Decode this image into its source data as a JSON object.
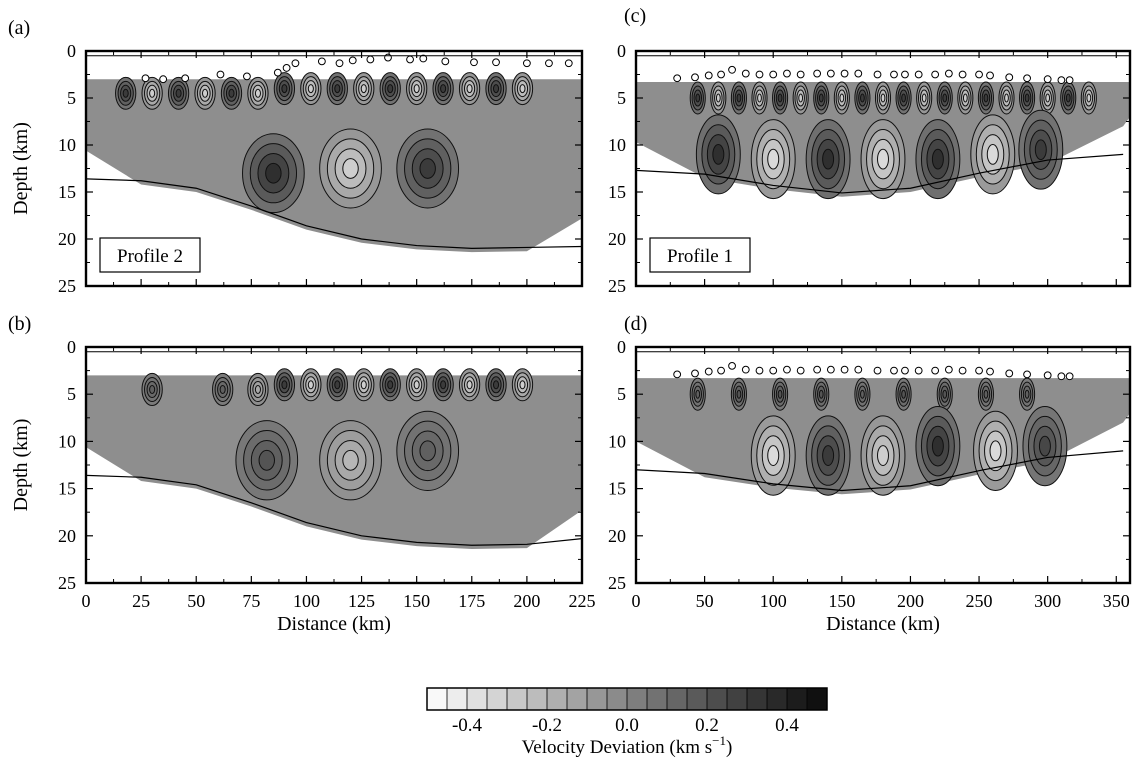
{
  "chart_data": [
    {
      "panel": "(a)",
      "type": "heatmap",
      "profile_label": "Profile 2",
      "xlim": [
        0,
        225
      ],
      "ylim": [
        0,
        25
      ],
      "y_inverted": true,
      "xticks": [
        0,
        25,
        50,
        75,
        100,
        125,
        150,
        175,
        200,
        225
      ],
      "yticks": [
        0,
        5,
        10,
        15,
        20,
        25
      ],
      "ylabel": "Depth (km)",
      "xlabel": "",
      "x_tick_labels_shown": false,
      "surface_depth_km": 3.0,
      "stations": [
        {
          "x": 27,
          "depth": 2.9
        },
        {
          "x": 35,
          "depth": 3.0
        },
        {
          "x": 45,
          "depth": 2.9
        },
        {
          "x": 61,
          "depth": 2.5
        },
        {
          "x": 73,
          "depth": 2.7
        },
        {
          "x": 87,
          "depth": 2.3
        },
        {
          "x": 91,
          "depth": 1.8
        },
        {
          "x": 95,
          "depth": 1.3
        },
        {
          "x": 107,
          "depth": 1.1
        },
        {
          "x": 115,
          "depth": 1.3
        },
        {
          "x": 121,
          "depth": 1.0
        },
        {
          "x": 129,
          "depth": 0.9
        },
        {
          "x": 137,
          "depth": 0.7
        },
        {
          "x": 147,
          "depth": 0.9
        },
        {
          "x": 153,
          "depth": 0.8
        },
        {
          "x": 163,
          "depth": 1.1
        },
        {
          "x": 176,
          "depth": 1.2
        },
        {
          "x": 186,
          "depth": 1.2
        },
        {
          "x": 200,
          "depth": 1.3
        },
        {
          "x": 210,
          "depth": 1.3
        },
        {
          "x": 219,
          "depth": 1.3
        }
      ],
      "moho": [
        [
          0,
          13.6
        ],
        [
          25,
          13.8
        ],
        [
          50,
          14.6
        ],
        [
          75,
          16.5
        ],
        [
          100,
          18.6
        ],
        [
          125,
          20.0
        ],
        [
          150,
          20.7
        ],
        [
          175,
          21.0
        ],
        [
          200,
          20.9
        ],
        [
          225,
          20.8
        ]
      ],
      "anomalies": [
        {
          "x": 18,
          "depth": 4.5,
          "value": 0.3
        },
        {
          "x": 30,
          "depth": 4.5,
          "value": -0.3
        },
        {
          "x": 42,
          "depth": 4.5,
          "value": 0.3
        },
        {
          "x": 54,
          "depth": 4.5,
          "value": -0.3
        },
        {
          "x": 66,
          "depth": 4.5,
          "value": 0.3
        },
        {
          "x": 78,
          "depth": 4.5,
          "value": -0.3
        },
        {
          "x": 90,
          "depth": 4.0,
          "value": 0.3
        },
        {
          "x": 102,
          "depth": 4.0,
          "value": -0.3
        },
        {
          "x": 114,
          "depth": 4.0,
          "value": 0.3
        },
        {
          "x": 126,
          "depth": 4.0,
          "value": -0.3
        },
        {
          "x": 138,
          "depth": 4.0,
          "value": 0.3
        },
        {
          "x": 150,
          "depth": 4.0,
          "value": -0.3
        },
        {
          "x": 162,
          "depth": 4.0,
          "value": 0.3
        },
        {
          "x": 174,
          "depth": 4.0,
          "value": -0.3
        },
        {
          "x": 186,
          "depth": 4.0,
          "value": 0.3
        },
        {
          "x": 198,
          "depth": 4.0,
          "value": -0.3
        },
        {
          "x": 85,
          "depth": 13.0,
          "value": 0.35
        },
        {
          "x": 120,
          "depth": 12.5,
          "value": -0.3
        },
        {
          "x": 155,
          "depth": 12.5,
          "value": 0.3
        }
      ]
    },
    {
      "panel": "(b)",
      "type": "heatmap",
      "xlim": [
        0,
        225
      ],
      "ylim": [
        0,
        25
      ],
      "y_inverted": true,
      "xticks": [
        0,
        25,
        50,
        75,
        100,
        125,
        150,
        175,
        200,
        225
      ],
      "yticks": [
        0,
        5,
        10,
        15,
        20,
        25
      ],
      "ylabel": "Depth (km)",
      "xlabel": "Distance (km)",
      "x_tick_labels_shown": true,
      "surface_depth_km": 3.0,
      "moho": [
        [
          0,
          13.6
        ],
        [
          25,
          13.8
        ],
        [
          50,
          14.6
        ],
        [
          75,
          16.5
        ],
        [
          100,
          18.6
        ],
        [
          125,
          20.0
        ],
        [
          150,
          20.7
        ],
        [
          175,
          21.0
        ],
        [
          200,
          20.9
        ],
        [
          225,
          20.3
        ]
      ],
      "anomalies": [
        {
          "x": 30,
          "depth": 4.5,
          "value": 0.15
        },
        {
          "x": 62,
          "depth": 4.5,
          "value": 0.15
        },
        {
          "x": 78,
          "depth": 4.5,
          "value": -0.15
        },
        {
          "x": 90,
          "depth": 4.0,
          "value": 0.3
        },
        {
          "x": 102,
          "depth": 4.0,
          "value": -0.3
        },
        {
          "x": 114,
          "depth": 4.0,
          "value": 0.3
        },
        {
          "x": 126,
          "depth": 4.0,
          "value": -0.3
        },
        {
          "x": 138,
          "depth": 4.0,
          "value": 0.3
        },
        {
          "x": 150,
          "depth": 4.0,
          "value": -0.3
        },
        {
          "x": 162,
          "depth": 4.0,
          "value": 0.3
        },
        {
          "x": 174,
          "depth": 4.0,
          "value": -0.3
        },
        {
          "x": 186,
          "depth": 4.0,
          "value": 0.3
        },
        {
          "x": 198,
          "depth": 4.0,
          "value": -0.3
        },
        {
          "x": 82,
          "depth": 12.0,
          "value": 0.2
        },
        {
          "x": 120,
          "depth": 12.0,
          "value": -0.2
        },
        {
          "x": 155,
          "depth": 11.0,
          "value": 0.15
        }
      ]
    },
    {
      "panel": "(c)",
      "type": "heatmap",
      "profile_label": "Profile 1",
      "xlim": [
        0,
        360
      ],
      "ylim": [
        0,
        25
      ],
      "y_inverted": true,
      "xticks": [
        0,
        50,
        100,
        150,
        200,
        250,
        300,
        350
      ],
      "yticks": [
        0,
        5,
        10,
        15,
        20,
        25
      ],
      "ylabel": "",
      "xlabel": "",
      "x_tick_labels_shown": false,
      "surface_depth_km": 3.3,
      "stations": [
        {
          "x": 30,
          "depth": 2.9
        },
        {
          "x": 43,
          "depth": 2.8
        },
        {
          "x": 53,
          "depth": 2.6
        },
        {
          "x": 62,
          "depth": 2.5
        },
        {
          "x": 70,
          "depth": 2.0
        },
        {
          "x": 80,
          "depth": 2.4
        },
        {
          "x": 90,
          "depth": 2.5
        },
        {
          "x": 100,
          "depth": 2.5
        },
        {
          "x": 110,
          "depth": 2.4
        },
        {
          "x": 120,
          "depth": 2.5
        },
        {
          "x": 132,
          "depth": 2.4
        },
        {
          "x": 142,
          "depth": 2.4
        },
        {
          "x": 152,
          "depth": 2.4
        },
        {
          "x": 162,
          "depth": 2.4
        },
        {
          "x": 176,
          "depth": 2.5
        },
        {
          "x": 188,
          "depth": 2.5
        },
        {
          "x": 196,
          "depth": 2.5
        },
        {
          "x": 206,
          "depth": 2.5
        },
        {
          "x": 218,
          "depth": 2.5
        },
        {
          "x": 228,
          "depth": 2.4
        },
        {
          "x": 238,
          "depth": 2.5
        },
        {
          "x": 250,
          "depth": 2.5
        },
        {
          "x": 258,
          "depth": 2.6
        },
        {
          "x": 272,
          "depth": 2.8
        },
        {
          "x": 285,
          "depth": 2.9
        },
        {
          "x": 300,
          "depth": 3.0
        },
        {
          "x": 310,
          "depth": 3.1
        },
        {
          "x": 316,
          "depth": 3.1
        }
      ],
      "moho": [
        [
          0,
          12.7
        ],
        [
          50,
          13.1
        ],
        [
          100,
          14.3
        ],
        [
          150,
          15.1
        ],
        [
          200,
          14.6
        ],
        [
          250,
          13.0
        ],
        [
          300,
          11.6
        ],
        [
          355,
          11.0
        ]
      ],
      "anomalies": [
        {
          "x": 45,
          "depth": 5.0,
          "value": 0.3
        },
        {
          "x": 60,
          "depth": 5.0,
          "value": -0.3
        },
        {
          "x": 75,
          "depth": 5.0,
          "value": 0.3
        },
        {
          "x": 90,
          "depth": 5.0,
          "value": -0.3
        },
        {
          "x": 105,
          "depth": 5.0,
          "value": 0.3
        },
        {
          "x": 120,
          "depth": 5.0,
          "value": -0.3
        },
        {
          "x": 135,
          "depth": 5.0,
          "value": 0.3
        },
        {
          "x": 150,
          "depth": 5.0,
          "value": -0.3
        },
        {
          "x": 165,
          "depth": 5.0,
          "value": 0.3
        },
        {
          "x": 180,
          "depth": 5.0,
          "value": -0.3
        },
        {
          "x": 195,
          "depth": 5.0,
          "value": 0.3
        },
        {
          "x": 210,
          "depth": 5.0,
          "value": -0.3
        },
        {
          "x": 225,
          "depth": 5.0,
          "value": 0.3
        },
        {
          "x": 240,
          "depth": 5.0,
          "value": -0.3
        },
        {
          "x": 255,
          "depth": 5.0,
          "value": 0.3
        },
        {
          "x": 270,
          "depth": 5.0,
          "value": -0.3
        },
        {
          "x": 285,
          "depth": 5.0,
          "value": 0.3
        },
        {
          "x": 300,
          "depth": 5.0,
          "value": -0.3
        },
        {
          "x": 315,
          "depth": 5.0,
          "value": 0.3
        },
        {
          "x": 330,
          "depth": 5.0,
          "value": -0.3
        },
        {
          "x": 60,
          "depth": 11.0,
          "value": 0.35
        },
        {
          "x": 100,
          "depth": 11.5,
          "value": -0.35
        },
        {
          "x": 140,
          "depth": 11.5,
          "value": 0.35
        },
        {
          "x": 180,
          "depth": 11.5,
          "value": -0.35
        },
        {
          "x": 220,
          "depth": 11.5,
          "value": 0.35
        },
        {
          "x": 260,
          "depth": 11.0,
          "value": -0.35
        },
        {
          "x": 295,
          "depth": 10.5,
          "value": 0.3
        }
      ]
    },
    {
      "panel": "(d)",
      "type": "heatmap",
      "xlim": [
        0,
        360
      ],
      "ylim": [
        0,
        25
      ],
      "y_inverted": true,
      "xticks": [
        0,
        50,
        100,
        150,
        200,
        250,
        300,
        350
      ],
      "yticks": [
        0,
        5,
        10,
        15,
        20,
        25
      ],
      "ylabel": "",
      "xlabel": "Distance (km)",
      "x_tick_labels_shown": true,
      "surface_depth_km": 3.3,
      "stations": [
        {
          "x": 30,
          "depth": 2.9
        },
        {
          "x": 43,
          "depth": 2.8
        },
        {
          "x": 53,
          "depth": 2.6
        },
        {
          "x": 62,
          "depth": 2.5
        },
        {
          "x": 70,
          "depth": 2.0
        },
        {
          "x": 80,
          "depth": 2.4
        },
        {
          "x": 90,
          "depth": 2.5
        },
        {
          "x": 100,
          "depth": 2.5
        },
        {
          "x": 110,
          "depth": 2.4
        },
        {
          "x": 120,
          "depth": 2.5
        },
        {
          "x": 132,
          "depth": 2.4
        },
        {
          "x": 142,
          "depth": 2.4
        },
        {
          "x": 152,
          "depth": 2.4
        },
        {
          "x": 162,
          "depth": 2.4
        },
        {
          "x": 176,
          "depth": 2.5
        },
        {
          "x": 188,
          "depth": 2.5
        },
        {
          "x": 196,
          "depth": 2.5
        },
        {
          "x": 206,
          "depth": 2.5
        },
        {
          "x": 218,
          "depth": 2.5
        },
        {
          "x": 228,
          "depth": 2.4
        },
        {
          "x": 238,
          "depth": 2.5
        },
        {
          "x": 250,
          "depth": 2.5
        },
        {
          "x": 258,
          "depth": 2.6
        },
        {
          "x": 272,
          "depth": 2.8
        },
        {
          "x": 285,
          "depth": 2.9
        },
        {
          "x": 300,
          "depth": 3.0
        },
        {
          "x": 310,
          "depth": 3.1
        },
        {
          "x": 316,
          "depth": 3.1
        }
      ],
      "moho": [
        [
          0,
          13.0
        ],
        [
          50,
          13.4
        ],
        [
          100,
          14.5
        ],
        [
          150,
          15.2
        ],
        [
          200,
          14.7
        ],
        [
          250,
          13.1
        ],
        [
          300,
          11.7
        ],
        [
          355,
          11.0
        ]
      ],
      "anomalies": [
        {
          "x": 45,
          "depth": 5.0,
          "value": 0.15
        },
        {
          "x": 75,
          "depth": 5.0,
          "value": 0.2
        },
        {
          "x": 105,
          "depth": 5.0,
          "value": 0.2
        },
        {
          "x": 135,
          "depth": 5.0,
          "value": 0.2
        },
        {
          "x": 165,
          "depth": 5.0,
          "value": 0.15
        },
        {
          "x": 195,
          "depth": 5.0,
          "value": 0.2
        },
        {
          "x": 225,
          "depth": 5.0,
          "value": 0.2
        },
        {
          "x": 255,
          "depth": 5.0,
          "value": 0.15
        },
        {
          "x": 285,
          "depth": 5.0,
          "value": 0.15
        },
        {
          "x": 100,
          "depth": 11.5,
          "value": -0.35
        },
        {
          "x": 140,
          "depth": 11.5,
          "value": 0.3
        },
        {
          "x": 180,
          "depth": 11.5,
          "value": -0.3
        },
        {
          "x": 220,
          "depth": 10.5,
          "value": 0.35
        },
        {
          "x": 262,
          "depth": 11.0,
          "value": -0.35
        },
        {
          "x": 298,
          "depth": 10.5,
          "value": 0.25
        }
      ]
    }
  ],
  "colorbar": {
    "title": "Velocity Deviation (km s",
    "title_exponent": "−1",
    "title_close": ")",
    "range": [
      -0.5,
      0.5
    ],
    "step": 0.05,
    "tick_values": [
      -0.4,
      -0.2,
      0.0,
      0.2,
      0.4
    ],
    "tick_labels": [
      "-0.4",
      "-0.2",
      "0.0",
      "0.2",
      "0.4"
    ]
  }
}
